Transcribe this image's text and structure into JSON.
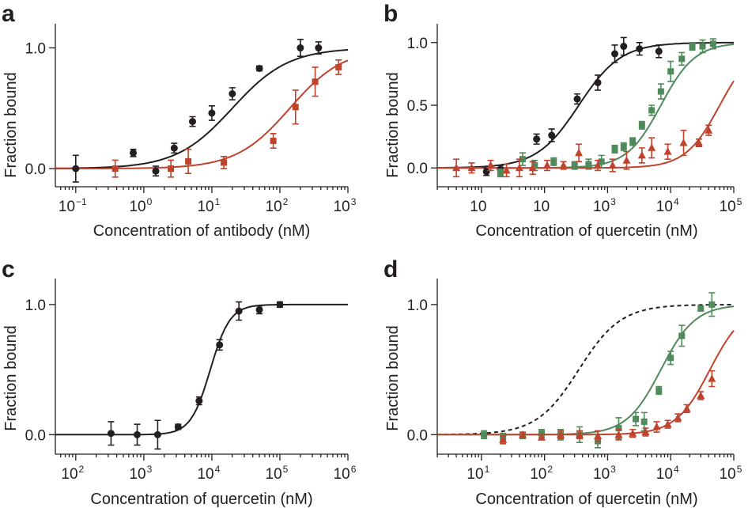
{
  "colors": {
    "black": "#231f20",
    "red": "#c0432e",
    "green": "#4f8a5b"
  },
  "chart_data": [
    {
      "panel": "a",
      "type": "scatter",
      "xscale": "log",
      "xlabel": "Concentration of antibody (nM)",
      "ylabel": "Fraction bound",
      "xlim_exp": [
        -1.3,
        3.0
      ],
      "ylim": [
        -0.15,
        1.2
      ],
      "xtick_exps": [
        -1,
        0,
        1,
        2,
        3
      ],
      "xtick_labels": [
        "10",
        "10",
        "10",
        "10",
        "10"
      ],
      "xtick_sups": [
        "−1",
        "0",
        "1",
        "2",
        "3"
      ],
      "yticks": [
        0.0,
        1.0
      ],
      "ytick_labels": [
        "0.0",
        "1.0"
      ],
      "series": [
        {
          "name": "black",
          "color": "black",
          "marker": "circle",
          "fit": {
            "kd": 20,
            "n": 1.05
          },
          "x": [
            0.1,
            0.7,
            1.5,
            2.8,
            5.2,
            10,
            20,
            50,
            200,
            370
          ],
          "y": [
            0.0,
            0.13,
            -0.02,
            0.17,
            0.39,
            0.46,
            0.62,
            0.83,
            1.0,
            1.0
          ],
          "err": [
            0.11,
            0.03,
            0.04,
            0.04,
            0.04,
            0.06,
            0.05,
            0.02,
            0.07,
            0.05
          ]
        },
        {
          "name": "red",
          "color": "red",
          "marker": "square",
          "fit": {
            "kd": 140,
            "n": 1.1
          },
          "x": [
            0.38,
            2.5,
            4.5,
            15,
            80,
            170,
            330,
            730
          ],
          "y": [
            0.0,
            0.0,
            0.06,
            0.05,
            0.23,
            0.51,
            0.72,
            0.84
          ],
          "err": [
            0.07,
            0.07,
            0.1,
            0.05,
            0.06,
            0.14,
            0.12,
            0.06
          ]
        }
      ]
    },
    {
      "panel": "b",
      "type": "scatter",
      "xscale": "log",
      "xlabel": "Concentration of quercetin (nM)",
      "ylabel": "Fraction bound",
      "xlim_exp": [
        0.3,
        5.0
      ],
      "ylim": [
        -0.15,
        1.15
      ],
      "xtick_exps": [
        1,
        2,
        3,
        4,
        5
      ],
      "xtick_labels": [
        "10",
        "10",
        "10",
        "10",
        "10"
      ],
      "xtick_sups": [
        "",
        "",
        "3",
        "4",
        "5"
      ],
      "yticks": [
        0.0,
        0.5,
        1.0
      ],
      "ytick_labels": [
        "0.0",
        "0.5",
        "1.0"
      ],
      "series": [
        {
          "name": "black",
          "color": "black",
          "marker": "circle",
          "fit": {
            "kd": 350,
            "n": 1.3
          },
          "x": [
            12,
            20,
            75,
            130,
            330,
            700,
            1300,
            1800,
            3200,
            6500
          ],
          "y": [
            -0.03,
            -0.01,
            0.23,
            0.26,
            0.55,
            0.68,
            0.91,
            0.97,
            0.95,
            0.93
          ],
          "err": [
            0.03,
            0.03,
            0.04,
            0.05,
            0.04,
            0.06,
            0.07,
            0.07,
            0.05,
            0.05
          ]
        },
        {
          "name": "green",
          "color": "green",
          "marker": "square",
          "fit": {
            "kd": 7000,
            "n": 1.6
          },
          "x": [
            20,
            45,
            70,
            140,
            300,
            500,
            800,
            1300,
            1800,
            2500,
            3500,
            5000,
            7000,
            10000,
            15000,
            22000,
            32000,
            47000
          ],
          "y": [
            -0.04,
            0.07,
            0.02,
            0.05,
            0.02,
            0.03,
            0.05,
            0.15,
            0.17,
            0.21,
            0.34,
            0.46,
            0.61,
            0.77,
            0.87,
            0.97,
            0.97,
            0.99
          ],
          "err": [
            0.03,
            0.05,
            0.04,
            0.03,
            0.03,
            0.04,
            0.05,
            0.03,
            0.03,
            0.03,
            0.03,
            0.04,
            0.06,
            0.08,
            0.05,
            0.03,
            0.05,
            0.04
          ]
        },
        {
          "name": "red",
          "color": "red",
          "marker": "triangle",
          "fit": {
            "kd": 60000,
            "n": 1.6
          },
          "x": [
            4,
            7,
            14,
            25,
            40,
            65,
            110,
            200,
            350,
            700,
            1200,
            2000,
            3500,
            5000,
            9000,
            16000,
            28000,
            40000
          ],
          "y": [
            0.0,
            0.0,
            0.02,
            -0.02,
            0.0,
            0.0,
            0.02,
            0.02,
            0.12,
            0.02,
            0.02,
            0.06,
            0.1,
            0.16,
            0.13,
            0.2,
            0.2,
            0.3
          ],
          "err": [
            0.07,
            0.04,
            0.04,
            0.05,
            0.07,
            0.05,
            0.04,
            0.03,
            0.07,
            0.04,
            0.05,
            0.07,
            0.06,
            0.08,
            0.06,
            0.1,
            0.03,
            0.04
          ]
        }
      ]
    },
    {
      "panel": "c",
      "type": "scatter",
      "xscale": "log",
      "xlabel": "Concentration of quercetin (nM)",
      "ylabel": "Fraction bound",
      "xlim_exp": [
        1.7,
        6.0
      ],
      "ylim": [
        -0.15,
        1.2
      ],
      "xtick_exps": [
        2,
        3,
        4,
        5,
        6
      ],
      "xtick_labels": [
        "10",
        "10",
        "10",
        "10",
        "10"
      ],
      "xtick_sups": [
        "2",
        "3",
        "4",
        "5",
        "6"
      ],
      "yticks": [
        0.0,
        1.0
      ],
      "ytick_labels": [
        "0.0",
        "1.0"
      ],
      "series": [
        {
          "name": "black",
          "color": "black",
          "marker": "circle",
          "fit": {
            "kd": 9500,
            "n": 3.0
          },
          "x": [
            330,
            800,
            1600,
            3200,
            6500,
            13000,
            25000,
            50000,
            100000
          ],
          "y": [
            0.01,
            0.0,
            0.0,
            0.06,
            0.26,
            0.69,
            0.95,
            0.96,
            1.0
          ],
          "err": [
            0.09,
            0.08,
            0.11,
            0.02,
            0.03,
            0.04,
            0.07,
            0.03,
            0.02
          ]
        }
      ]
    },
    {
      "panel": "d",
      "type": "scatter",
      "xscale": "log",
      "xlabel": "Concentration of quercetin (nM)",
      "ylabel": "Fraction bound",
      "xlim_exp": [
        0.3,
        5.0
      ],
      "ylim": [
        -0.15,
        1.2
      ],
      "xtick_exps": [
        1,
        2,
        3,
        4,
        5
      ],
      "xtick_labels": [
        "10",
        "10",
        "10",
        "10",
        "10"
      ],
      "xtick_sups": [
        "1",
        "2",
        "3",
        "4",
        "5"
      ],
      "yticks": [
        0.0,
        1.0
      ],
      "ytick_labels": [
        "0.0",
        "1.0"
      ],
      "dashed_reference": {
        "kd": 350,
        "n": 1.3
      },
      "series": [
        {
          "name": "green",
          "color": "green",
          "marker": "square",
          "fit": {
            "kd": 7000,
            "n": 1.6
          },
          "x": [
            11,
            22,
            45,
            90,
            180,
            360,
            700,
            1500,
            2800,
            3800,
            6500,
            10000,
            15000,
            30000,
            45000
          ],
          "y": [
            0.0,
            -0.02,
            -0.01,
            0.01,
            0.0,
            0.0,
            -0.05,
            0.05,
            0.12,
            0.1,
            0.34,
            0.59,
            0.76,
            0.97,
            1.0
          ],
          "err": [
            0.03,
            0.03,
            0.02,
            0.03,
            0.04,
            0.06,
            0.05,
            0.08,
            0.05,
            0.07,
            0.03,
            0.05,
            0.08,
            0.02,
            0.09
          ]
        },
        {
          "name": "red",
          "color": "red",
          "marker": "triangle",
          "fit": {
            "kd": 42000,
            "n": 1.6
          },
          "x": [
            22,
            45,
            90,
            180,
            360,
            700,
            1500,
            2500,
            4000,
            6000,
            9000,
            13000,
            18000,
            30000,
            45000
          ],
          "y": [
            -0.04,
            0.0,
            -0.02,
            0.0,
            0.0,
            -0.01,
            0.0,
            0.01,
            0.02,
            0.06,
            0.08,
            0.13,
            0.2,
            0.3,
            0.43
          ],
          "err": [
            0.03,
            0.02,
            0.02,
            0.03,
            0.03,
            0.04,
            0.04,
            0.03,
            0.03,
            0.04,
            0.03,
            0.03,
            0.03,
            0.03,
            0.06
          ]
        }
      ]
    }
  ]
}
